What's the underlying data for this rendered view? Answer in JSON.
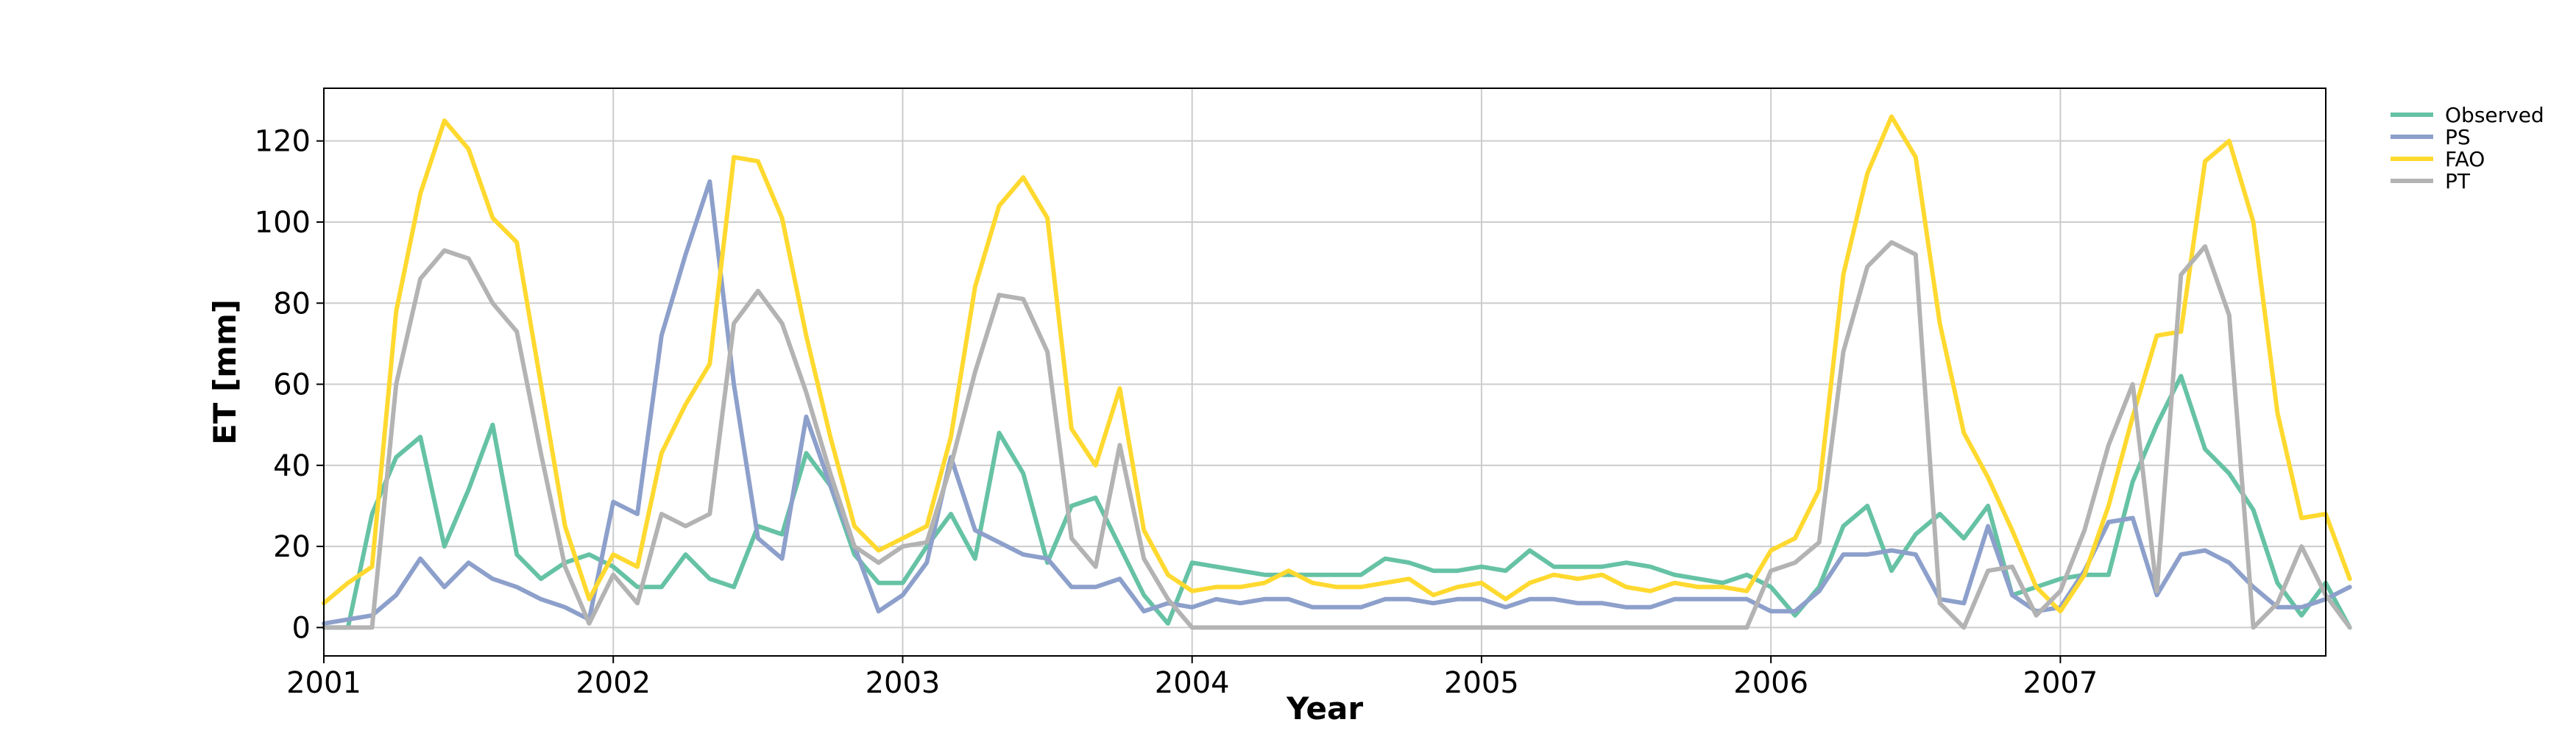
{
  "chart_data": {
    "type": "line",
    "title": "",
    "xlabel": "Year",
    "ylabel": "ET [mm]",
    "xlim": [
      2001,
      2007.917
    ],
    "ylim": [
      -7,
      133
    ],
    "x_ticks": [
      2001,
      2002,
      2003,
      2004,
      2005,
      2006,
      2007
    ],
    "y_ticks": [
      0,
      20,
      40,
      60,
      80,
      100,
      120
    ],
    "grid": true,
    "legend_position": "outside top-right",
    "x_start": "2001-01",
    "x_step": "month",
    "series": [
      {
        "name": "Observed",
        "color": "#66c2a5",
        "values": [
          0,
          0,
          28,
          42,
          47,
          20,
          34,
          50,
          18,
          12,
          16,
          18,
          15,
          10,
          10,
          18,
          12,
          10,
          25,
          23,
          43,
          35,
          18,
          11,
          11,
          20,
          28,
          17,
          48,
          38,
          16,
          30,
          32,
          20,
          8,
          1,
          16,
          15,
          14,
          13,
          13,
          13,
          13,
          13,
          17,
          16,
          14,
          14,
          15,
          14,
          19,
          15,
          15,
          15,
          16,
          15,
          13,
          12,
          11,
          13,
          10,
          3,
          10,
          25,
          30,
          14,
          23,
          28,
          22,
          30,
          8,
          10,
          12,
          13,
          13,
          36,
          50,
          62,
          44,
          38,
          29,
          11,
          3,
          11,
          0
        ]
      },
      {
        "name": "PS",
        "color": "#8da0cb",
        "values": [
          1,
          2,
          3,
          8,
          17,
          10,
          16,
          12,
          10,
          7,
          5,
          2,
          31,
          28,
          72,
          92,
          110,
          60,
          22,
          17,
          52,
          35,
          20,
          4,
          8,
          16,
          42,
          24,
          21,
          18,
          17,
          10,
          10,
          12,
          4,
          6,
          5,
          7,
          6,
          7,
          7,
          5,
          5,
          5,
          7,
          7,
          6,
          7,
          7,
          5,
          7,
          7,
          6,
          6,
          5,
          5,
          7,
          7,
          7,
          7,
          4,
          4,
          9,
          18,
          18,
          19,
          18,
          7,
          6,
          25,
          8,
          4,
          5,
          14,
          26,
          27,
          8,
          18,
          19,
          16,
          10,
          5,
          5,
          7,
          10
        ]
      },
      {
        "name": "FAO",
        "color": "#ffd92f",
        "values": [
          6,
          11,
          15,
          78,
          107,
          125,
          118,
          101,
          95,
          60,
          25,
          7,
          18,
          15,
          43,
          55,
          65,
          116,
          115,
          101,
          72,
          47,
          25,
          19,
          22,
          25,
          47,
          84,
          104,
          111,
          101,
          49,
          40,
          59,
          24,
          13,
          9,
          10,
          10,
          11,
          14,
          11,
          10,
          10,
          11,
          12,
          8,
          10,
          11,
          7,
          11,
          13,
          12,
          13,
          10,
          9,
          11,
          10,
          10,
          9,
          19,
          22,
          34,
          87,
          112,
          126,
          116,
          75,
          48,
          37,
          24,
          10,
          4,
          13,
          30,
          52,
          72,
          73,
          115,
          120,
          100,
          53,
          27,
          28,
          12
        ]
      },
      {
        "name": "PT",
        "color": "#b3b3b3",
        "values": [
          0,
          0,
          0,
          60,
          86,
          93,
          91,
          80,
          73,
          43,
          15,
          1,
          13,
          6,
          28,
          25,
          28,
          75,
          83,
          75,
          58,
          38,
          20,
          16,
          20,
          21,
          40,
          63,
          82,
          81,
          68,
          22,
          15,
          45,
          17,
          7,
          0,
          0,
          0,
          0,
          0,
          0,
          0,
          0,
          0,
          0,
          0,
          0,
          0,
          0,
          0,
          0,
          0,
          0,
          0,
          0,
          0,
          0,
          0,
          0,
          14,
          16,
          21,
          68,
          89,
          95,
          92,
          6,
          0,
          14,
          15,
          3,
          9,
          24,
          45,
          60,
          9,
          87,
          94,
          77,
          0,
          6,
          20,
          8,
          0
        ]
      }
    ]
  }
}
